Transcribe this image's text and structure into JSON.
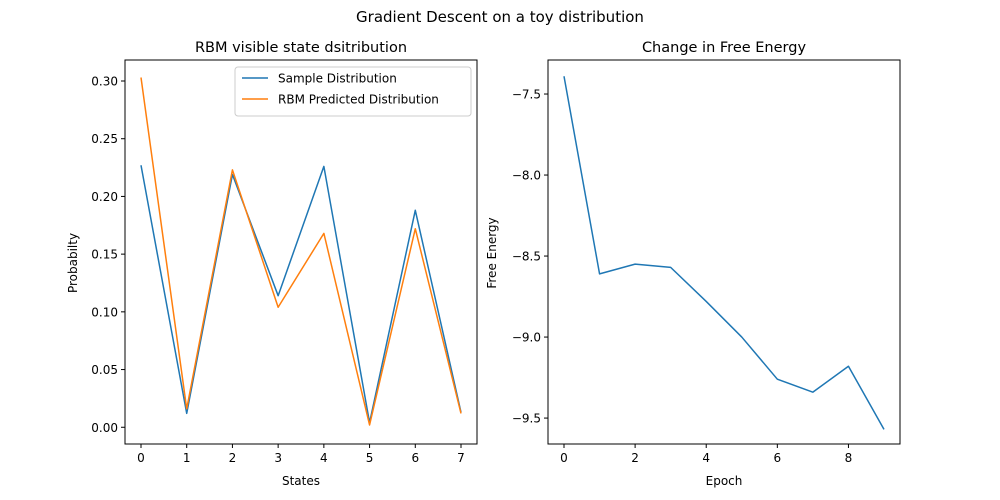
{
  "figure": {
    "suptitle": "Gradient Descent on a toy distribution"
  },
  "chart_data": [
    {
      "type": "line",
      "title": "RBM visible state dsitribution",
      "xlabel": "States",
      "ylabel": "Probabilty",
      "xlim": [
        -0.35,
        7.35
      ],
      "ylim": [
        -0.0145,
        0.3182
      ],
      "xticks": [
        "0",
        "1",
        "2",
        "3",
        "4",
        "5",
        "6",
        "7"
      ],
      "yticks": [
        "0.00",
        "0.05",
        "0.10",
        "0.15",
        "0.20",
        "0.25",
        "0.30"
      ],
      "legend": "upper right",
      "x": [
        0,
        1,
        2,
        3,
        4,
        5,
        6,
        7
      ],
      "series": [
        {
          "name": "Sample Distribution",
          "color": "#1f77b4",
          "values": [
            0.227,
            0.012,
            0.219,
            0.114,
            0.226,
            0.004,
            0.188,
            0.013
          ]
        },
        {
          "name": "RBM Predicted Distribution",
          "color": "#ff7f0e",
          "values": [
            0.303,
            0.016,
            0.223,
            0.104,
            0.168,
            0.002,
            0.172,
            0.012
          ]
        }
      ],
      "grid": false
    },
    {
      "type": "line",
      "title": "Change in Free Energy",
      "xlabel": "Epoch",
      "ylabel": "Free Energy",
      "xlim": [
        -0.45,
        9.45
      ],
      "ylim": [
        -9.66,
        -7.29
      ],
      "xticks": [
        "0",
        "2",
        "4",
        "6",
        "8"
      ],
      "yticks": [
        "−7.5",
        "−8.0",
        "−8.5",
        "−9.0",
        "−9.5"
      ],
      "x": [
        0,
        1,
        2,
        3,
        4,
        5,
        6,
        7,
        8,
        9
      ],
      "series": [
        {
          "color": "#1f77b4",
          "values": [
            -7.39,
            -8.61,
            -8.55,
            -8.57,
            -8.78,
            -9.0,
            -9.26,
            -9.34,
            -9.18,
            -9.57
          ]
        }
      ],
      "grid": false
    }
  ]
}
